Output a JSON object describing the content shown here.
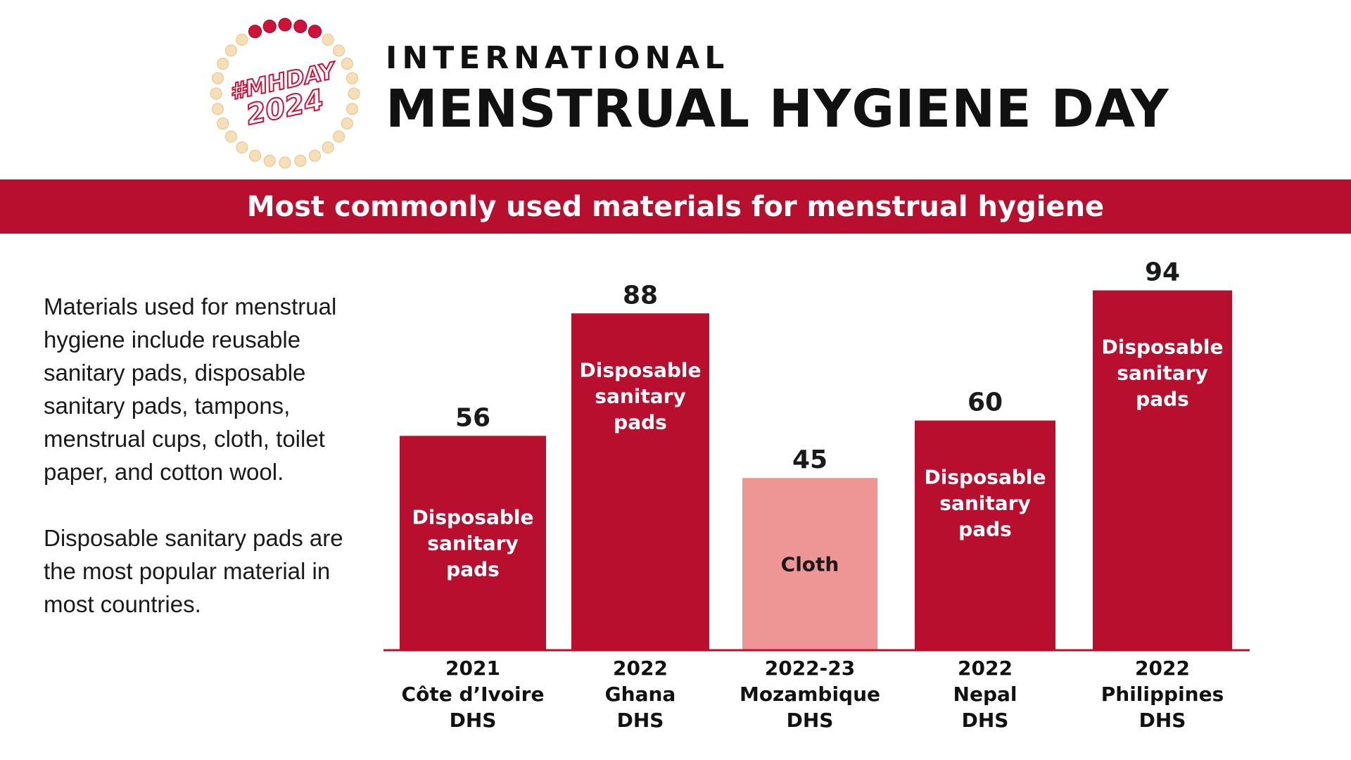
{
  "header": {
    "logo_text_line1": "#MHDAY",
    "logo_text_line2": "2024",
    "title_small": "INTERNATIONAL",
    "title_big": "MENSTRUAL HYGIENE DAY"
  },
  "banner": {
    "text": "Most commonly used materials for menstrual hygiene"
  },
  "side_text": {
    "paragraph1": "Materials used for menstrual hygiene include reusable sanitary pads, disposable sanitary pads, tampons, menstrual cups, cloth, toilet paper, and cotton wool.",
    "paragraph2": "Disposable sanitary pads are the most popular material in most countries."
  },
  "colors": {
    "primary": "#b80f2e",
    "secondary": "#ee9595",
    "text": "#1a1a1a",
    "bead_cream": "#f6dfb8",
    "bead_red": "#d0123a"
  },
  "chart_data": {
    "type": "bar",
    "title": "Most commonly used materials for menstrual hygiene",
    "xlabel": "",
    "ylabel": "",
    "ylim": [
      0,
      100
    ],
    "grid": false,
    "legend": "none",
    "bars": [
      {
        "category": [
          "2021",
          "Côte d’Ivoire",
          "DHS"
        ],
        "value": 56,
        "label": [
          "Disposable",
          "sanitary",
          "pads"
        ],
        "color": "#b80f2e",
        "label_color": "#ffffff",
        "label_align": "center"
      },
      {
        "category": [
          "2022",
          "Ghana",
          "DHS"
        ],
        "value": 88,
        "label": [
          "Disposable",
          "sanitary",
          "pads"
        ],
        "color": "#b80f2e",
        "label_color": "#ffffff",
        "label_align": "top"
      },
      {
        "category": [
          "2022-23",
          "Mozambique",
          "DHS"
        ],
        "value": 45,
        "label": [
          "Cloth"
        ],
        "color": "#ee9595",
        "label_color": "#1a1a1a",
        "label_align": "center"
      },
      {
        "category": [
          "2022",
          "Nepal",
          "DHS"
        ],
        "value": 60,
        "label": [
          "Disposable",
          "sanitary",
          "pads"
        ],
        "color": "#b80f2e",
        "label_color": "#ffffff",
        "label_align": "top"
      },
      {
        "category": [
          "2022",
          "Philippines",
          "DHS"
        ],
        "value": 94,
        "label": [
          "Disposable",
          "sanitary",
          "pads"
        ],
        "color": "#b80f2e",
        "label_color": "#ffffff",
        "label_align": "top"
      }
    ]
  }
}
